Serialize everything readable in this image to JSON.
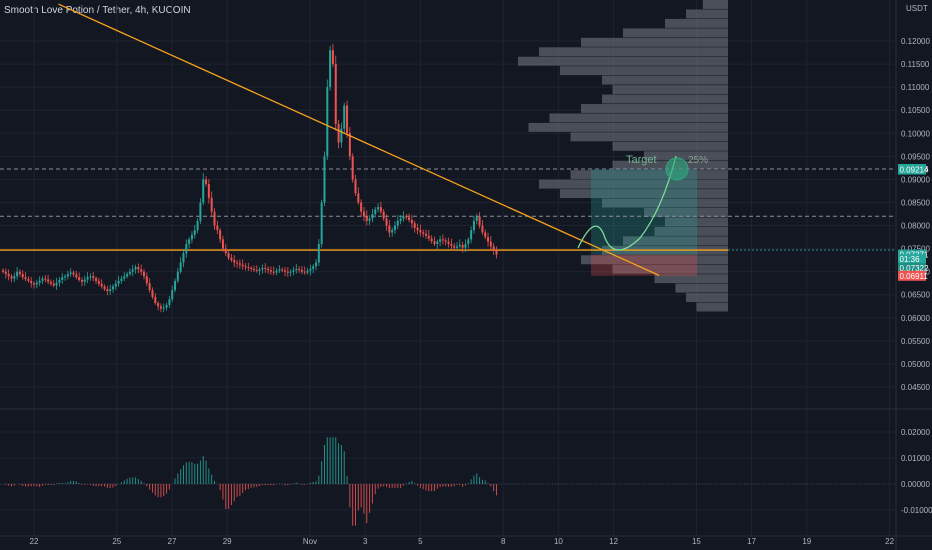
{
  "title": "Smooth Love Potion / Tether, 4h, KUCOIN",
  "currency": "USDT",
  "colors": {
    "up": "#26a69a",
    "down": "#ef5350",
    "trend": "#f7a21b",
    "bg": "#131722",
    "grid": "#1f2330",
    "axis_text": "#b2b5be",
    "target": "#26a69a",
    "stop": "#ef5350",
    "profile": "#787b86"
  },
  "chart_data": {
    "type": "candlestick",
    "price_axis": {
      "min": 0.04,
      "max": 0.12,
      "ticks": [
        "0.12000",
        "0.11500",
        "0.11000",
        "0.10500",
        "0.10000",
        "0.09500",
        "0.09000",
        "0.08500",
        "0.08000",
        "0.07500",
        "0.07000",
        "0.06500",
        "0.06000",
        "0.05500",
        "0.05000",
        "0.04500"
      ],
      "tick_values": [
        0.12,
        0.115,
        0.11,
        0.105,
        0.1,
        0.095,
        0.09,
        0.085,
        0.08,
        0.075,
        0.07,
        0.065,
        0.06,
        0.055,
        0.05,
        0.045
      ]
    },
    "x_labels": [
      {
        "label": "22",
        "day": 0
      },
      {
        "label": "25",
        "day": 3
      },
      {
        "label": "27",
        "day": 5
      },
      {
        "label": "29",
        "day": 7
      },
      {
        "label": "Nov",
        "day": 10
      },
      {
        "label": "3",
        "day": 12
      },
      {
        "label": "5",
        "day": 14
      },
      {
        "label": "8",
        "day": 17
      },
      {
        "label": "10",
        "day": 19
      },
      {
        "label": "12",
        "day": 21
      },
      {
        "label": "15",
        "day": 24
      },
      {
        "label": "17",
        "day": 26
      },
      {
        "label": "19",
        "day": 28
      },
      {
        "label": "22",
        "day": 31
      }
    ],
    "close_series": [
      0.07,
      0.0695,
      0.069,
      0.0685,
      0.069,
      0.07,
      0.0695,
      0.0688,
      0.0684,
      0.068,
      0.0675,
      0.0672,
      0.0676,
      0.068,
      0.0685,
      0.0683,
      0.0678,
      0.0674,
      0.067,
      0.0676,
      0.0682,
      0.0688,
      0.069,
      0.0695,
      0.0698,
      0.0694,
      0.0688,
      0.0682,
      0.0678,
      0.0683,
      0.0688,
      0.069,
      0.0686,
      0.068,
      0.0674,
      0.0668,
      0.0662,
      0.0658,
      0.0662,
      0.0668,
      0.0674,
      0.068,
      0.0685,
      0.069,
      0.0695,
      0.07,
      0.0705,
      0.071,
      0.0705,
      0.07,
      0.069,
      0.0675,
      0.066,
      0.0645,
      0.0632,
      0.0625,
      0.062,
      0.0622,
      0.0628,
      0.064,
      0.066,
      0.068,
      0.07,
      0.072,
      0.074,
      0.076,
      0.077,
      0.078,
      0.079,
      0.081,
      0.085,
      0.09,
      0.089,
      0.086,
      0.083,
      0.08,
      0.079,
      0.077,
      0.075,
      0.074,
      0.073,
      0.0725,
      0.072,
      0.0718,
      0.0715,
      0.0712,
      0.071,
      0.0708,
      0.0706,
      0.0704,
      0.0702,
      0.0705,
      0.0708,
      0.0706,
      0.0703,
      0.07,
      0.0698,
      0.0702,
      0.0705,
      0.0703,
      0.07,
      0.0698,
      0.07,
      0.0703,
      0.0706,
      0.0704,
      0.07,
      0.0698,
      0.0702,
      0.0706,
      0.0712,
      0.072,
      0.076,
      0.085,
      0.095,
      0.11,
      0.118,
      0.115,
      0.102,
      0.098,
      0.101,
      0.106,
      0.1,
      0.095,
      0.09,
      0.087,
      0.085,
      0.083,
      0.082,
      0.081,
      0.0815,
      0.0825,
      0.0835,
      0.084,
      0.083,
      0.0815,
      0.08,
      0.0785,
      0.079,
      0.08,
      0.081,
      0.0815,
      0.082,
      0.0818,
      0.0812,
      0.0805,
      0.0795,
      0.079,
      0.0785,
      0.0782,
      0.0778,
      0.0772,
      0.0766,
      0.076,
      0.0765,
      0.077,
      0.0768,
      0.0765,
      0.076,
      0.0756,
      0.0752,
      0.0755,
      0.0758,
      0.0752,
      0.076,
      0.077,
      0.079,
      0.081,
      0.082,
      0.08,
      0.0785,
      0.0775,
      0.0765,
      0.0755,
      0.0745,
      0.0737
    ],
    "trendline": {
      "start": {
        "candle": 20,
        "price": 0.128
      },
      "end": {
        "candle": 233,
        "price": 0.0692
      }
    },
    "support_line": {
      "price": 0.07468
    },
    "position": {
      "target_label": "Target",
      "target_pct": "25%",
      "entry": 0.0737,
      "target": 0.09226,
      "stop": 0.0691
    },
    "price_badges": [
      {
        "label": "0.09226",
        "price": 0.09226,
        "color": "#26a69a"
      },
      {
        "label": "0.09214",
        "price": 0.09214,
        "color": "#26a69a"
      },
      {
        "label": "0.07371",
        "price": 0.07371,
        "color": "#26a69a"
      },
      {
        "label": "01:36",
        "price": 0.0727,
        "color": "#26a69a"
      },
      {
        "label": "0.07322",
        "price": 0.0708,
        "color": "#1f8f84"
      },
      {
        "label": "0.06911",
        "price": 0.06911,
        "color": "#ef5350"
      }
    ],
    "volume_profile": [
      0.12,
      0.2,
      0.3,
      0.5,
      0.7,
      0.9,
      1.0,
      0.8,
      0.6,
      0.55,
      0.6,
      0.7,
      0.85,
      0.95,
      0.75,
      0.55,
      0.4,
      0.55,
      0.75,
      0.9,
      0.8,
      0.6,
      0.4,
      0.3,
      0.35,
      0.5,
      0.6,
      0.7,
      0.55,
      0.35,
      0.25,
      0.2,
      0.15
    ],
    "oscillator": {
      "axis": {
        "ticks": [
          "0.02000",
          "0.01000",
          "0.00000",
          "-0.01000"
        ],
        "tick_values": [
          0.02,
          0.01,
          0,
          -0.01
        ],
        "min": -0.018,
        "max": 0.024
      },
      "values": []
    }
  }
}
